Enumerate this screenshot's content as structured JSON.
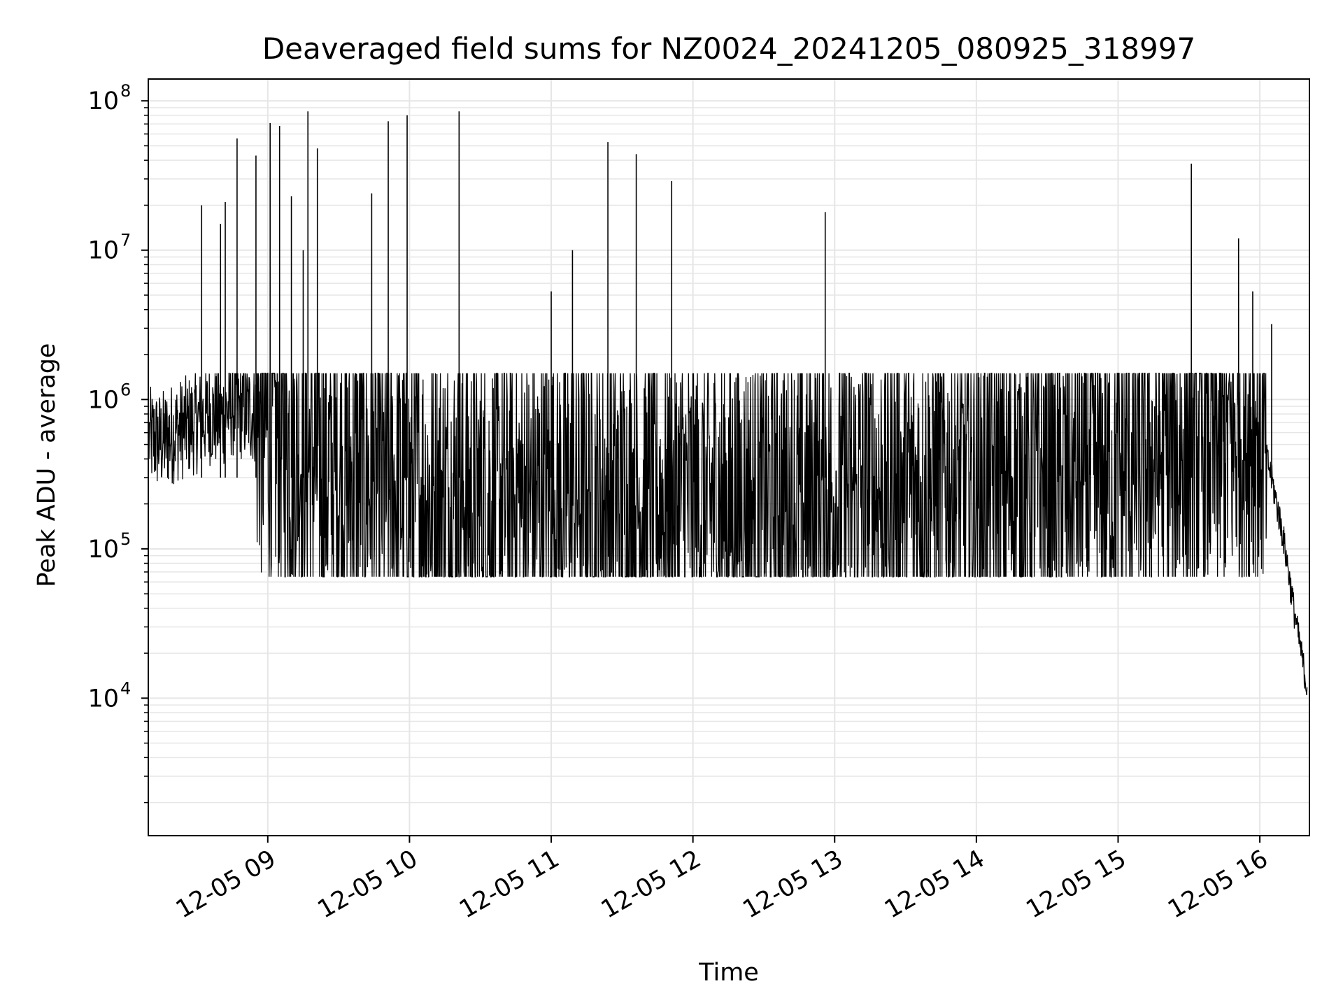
{
  "chart_data": {
    "type": "line",
    "title": "Deaveraged field sums for NZ0024_20241205_080925_318997",
    "xlabel": "Time",
    "ylabel": "Peak ADU - average",
    "yscale": "log",
    "ylim": [
      1200,
      140000000
    ],
    "xlim": [
      "2024-12-05 08:09:25",
      "2024-12-05 16:21:00"
    ],
    "grid": true,
    "line_color": "#000000",
    "grid_color": "#e6e6e6",
    "x_ticks": [
      {
        "value": "2024-12-05 09:00",
        "label": "12-05 09"
      },
      {
        "value": "2024-12-05 10:00",
        "label": "12-05 10"
      },
      {
        "value": "2024-12-05 11:00",
        "label": "12-05 11"
      },
      {
        "value": "2024-12-05 12:00",
        "label": "12-05 12"
      },
      {
        "value": "2024-12-05 13:00",
        "label": "12-05 13"
      },
      {
        "value": "2024-12-05 14:00",
        "label": "12-05 14"
      },
      {
        "value": "2024-12-05 15:00",
        "label": "12-05 15"
      },
      {
        "value": "2024-12-05 16:00",
        "label": "12-05 16"
      }
    ],
    "y_ticks": [
      {
        "value": 10000,
        "base": "10",
        "exp": "4"
      },
      {
        "value": 100000,
        "base": "10",
        "exp": "5"
      },
      {
        "value": 1000000,
        "base": "10",
        "exp": "6"
      },
      {
        "value": 10000000,
        "base": "10",
        "exp": "7"
      },
      {
        "value": 100000000,
        "base": "10",
        "exp": "8"
      }
    ],
    "series": [
      {
        "x": [
          "2024-12-05 08:10",
          "2024-12-05 08:15",
          "2024-12-05 08:20",
          "2024-12-05 08:25",
          "2024-12-05 08:30",
          "2024-12-05 08:35",
          "2024-12-05 08:40",
          "2024-12-05 08:45",
          "2024-12-05 08:50",
          "2024-12-05 08:55",
          "2024-12-05 09:00",
          "2024-12-05 09:05",
          "2024-12-05 09:10",
          "2024-12-05 09:15",
          "2024-12-05 09:20",
          "2024-12-05 09:25",
          "2024-12-05 09:30",
          "2024-12-05 09:35",
          "2024-12-05 09:40",
          "2024-12-05 09:45",
          "2024-12-05 09:50",
          "2024-12-05 09:55",
          "2024-12-05 10:00",
          "2024-12-05 10:05",
          "2024-12-05 10:10",
          "2024-12-05 10:15",
          "2024-12-05 10:20",
          "2024-12-05 10:25",
          "2024-12-05 10:30",
          "2024-12-05 10:35",
          "2024-12-05 10:40",
          "2024-12-05 10:45",
          "2024-12-05 10:50",
          "2024-12-05 10:55",
          "2024-12-05 11:00",
          "2024-12-05 11:05",
          "2024-12-05 11:10",
          "2024-12-05 11:15",
          "2024-12-05 11:20",
          "2024-12-05 11:25",
          "2024-12-05 11:30",
          "2024-12-05 11:35",
          "2024-12-05 11:40",
          "2024-12-05 11:45",
          "2024-12-05 11:50",
          "2024-12-05 11:55",
          "2024-12-05 12:00",
          "2024-12-05 12:05",
          "2024-12-05 12:10",
          "2024-12-05 12:15",
          "2024-12-05 12:20",
          "2024-12-05 12:25",
          "2024-12-05 12:30",
          "2024-12-05 12:35",
          "2024-12-05 12:40",
          "2024-12-05 12:45",
          "2024-12-05 12:50",
          "2024-12-05 12:55",
          "2024-12-05 13:00",
          "2024-12-05 13:05",
          "2024-12-05 13:10",
          "2024-12-05 13:15",
          "2024-12-05 13:20",
          "2024-12-05 13:25",
          "2024-12-05 13:30",
          "2024-12-05 13:35",
          "2024-12-05 13:40",
          "2024-12-05 13:45",
          "2024-12-05 13:50",
          "2024-12-05 13:55",
          "2024-12-05 14:00",
          "2024-12-05 14:05",
          "2024-12-05 14:10",
          "2024-12-05 14:15",
          "2024-12-05 14:20",
          "2024-12-05 14:25",
          "2024-12-05 14:30",
          "2024-12-05 14:35",
          "2024-12-05 14:40",
          "2024-12-05 14:45",
          "2024-12-05 14:50",
          "2024-12-05 14:55",
          "2024-12-05 15:00",
          "2024-12-05 15:05",
          "2024-12-05 15:10",
          "2024-12-05 15:15",
          "2024-12-05 15:20",
          "2024-12-05 15:25",
          "2024-12-05 15:30",
          "2024-12-05 15:35",
          "2024-12-05 15:40",
          "2024-12-05 15:45",
          "2024-12-05 15:50",
          "2024-12-05 15:55",
          "2024-12-05 16:00",
          "2024-12-05 16:05",
          "2024-12-05 16:10",
          "2024-12-05 16:15",
          "2024-12-05 16:20"
        ],
        "y": [
          550000,
          520000,
          600000,
          650000,
          700000,
          800000,
          750000,
          900000,
          850000,
          800000,
          600000,
          550000,
          500000,
          450000,
          380000,
          320000,
          300000,
          290000,
          320000,
          280000,
          260000,
          250000,
          230000,
          240000,
          220000,
          210000,
          230000,
          220000,
          210000,
          200000,
          220000,
          230000,
          210000,
          200000,
          230000,
          210000,
          240000,
          220000,
          200000,
          230000,
          210000,
          220000,
          200000,
          210000,
          190000,
          220000,
          200000,
          190000,
          210000,
          200000,
          210000,
          190000,
          200000,
          220000,
          210000,
          200000,
          230000,
          220000,
          210000,
          240000,
          230000,
          250000,
          240000,
          260000,
          250000,
          240000,
          260000,
          250000,
          270000,
          260000,
          280000,
          270000,
          260000,
          280000,
          270000,
          260000,
          280000,
          270000,
          290000,
          280000,
          300000,
          290000,
          310000,
          330000,
          350000,
          380000,
          400000,
          420000,
          450000,
          480000,
          500000,
          520000,
          550000,
          600000,
          650000,
          300000,
          120000,
          35000,
          12000
        ]
      }
    ],
    "spikes": [
      {
        "x": "2024-12-05 08:32",
        "y": 20000000
      },
      {
        "x": "2024-12-05 08:40",
        "y": 15000000
      },
      {
        "x": "2024-12-05 08:42",
        "y": 21000000
      },
      {
        "x": "2024-12-05 08:47",
        "y": 56000000
      },
      {
        "x": "2024-12-05 08:55",
        "y": 43000000
      },
      {
        "x": "2024-12-05 09:01",
        "y": 71000000
      },
      {
        "x": "2024-12-05 09:05",
        "y": 68000000
      },
      {
        "x": "2024-12-05 09:10",
        "y": 23000000
      },
      {
        "x": "2024-12-05 09:15",
        "y": 10000000
      },
      {
        "x": "2024-12-05 09:17",
        "y": 85000000
      },
      {
        "x": "2024-12-05 09:21",
        "y": 48000000
      },
      {
        "x": "2024-12-05 09:44",
        "y": 24000000
      },
      {
        "x": "2024-12-05 09:51",
        "y": 73000000
      },
      {
        "x": "2024-12-05 09:59",
        "y": 80000000
      },
      {
        "x": "2024-12-05 10:21",
        "y": 85000000
      },
      {
        "x": "2024-12-05 11:00",
        "y": 5300000
      },
      {
        "x": "2024-12-05 11:09",
        "y": 10000000
      },
      {
        "x": "2024-12-05 11:24",
        "y": 53000000
      },
      {
        "x": "2024-12-05 11:36",
        "y": 44000000
      },
      {
        "x": "2024-12-05 11:51",
        "y": 29000000
      },
      {
        "x": "2024-12-05 12:56",
        "y": 18000000
      },
      {
        "x": "2024-12-05 15:31",
        "y": 38000000
      },
      {
        "x": "2024-12-05 15:51",
        "y": 12000000
      },
      {
        "x": "2024-12-05 15:57",
        "y": 5300000
      },
      {
        "x": "2024-12-05 16:05",
        "y": 3200000
      }
    ]
  }
}
